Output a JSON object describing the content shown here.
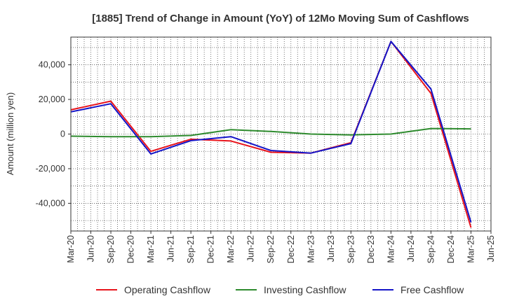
{
  "chart_data": {
    "type": "line",
    "title": "[1885]  Trend of Change in Amount (YoY) of 12Mo Moving Sum of Cashflows",
    "xlabel": "",
    "ylabel": "Amount (million yen)",
    "ylim": [
      -56000,
      56000
    ],
    "yticks": [
      -40000,
      -20000,
      0,
      20000,
      40000
    ],
    "ytick_labels": [
      "-40,000",
      "-20,000",
      "0",
      "20,000",
      "40,000"
    ],
    "categories": [
      "Mar-20",
      "Jun-20",
      "Sep-20",
      "Dec-20",
      "Mar-21",
      "Jun-21",
      "Sep-21",
      "Dec-21",
      "Mar-22",
      "Jun-22",
      "Sep-22",
      "Dec-22",
      "Mar-23",
      "Jun-23",
      "Sep-23",
      "Dec-23",
      "Mar-24",
      "Jun-24",
      "Sep-24",
      "Dec-24",
      "Mar-25",
      "Jun-25"
    ],
    "grid": true,
    "legend_position": "bottom",
    "series": [
      {
        "name": "Operating Cashflow",
        "color": "#e8141c",
        "points": [
          {
            "x": "Mar-20",
            "y": 14000
          },
          {
            "x": "Sep-20",
            "y": 19000
          },
          {
            "x": "Mar-21",
            "y": -10000
          },
          {
            "x": "Sep-21",
            "y": -3000
          },
          {
            "x": "Mar-22",
            "y": -4000
          },
          {
            "x": "Sep-22",
            "y": -10500
          },
          {
            "x": "Mar-23",
            "y": -11000
          },
          {
            "x": "Sep-23",
            "y": -5000
          },
          {
            "x": "Mar-24",
            "y": 53500
          },
          {
            "x": "Sep-24",
            "y": 23500
          },
          {
            "x": "Mar-25",
            "y": -54000
          }
        ]
      },
      {
        "name": "Investing Cashflow",
        "color": "#2e8b2e",
        "points": [
          {
            "x": "Mar-20",
            "y": -1200
          },
          {
            "x": "Sep-20",
            "y": -1500
          },
          {
            "x": "Mar-21",
            "y": -1500
          },
          {
            "x": "Sep-21",
            "y": -800
          },
          {
            "x": "Mar-22",
            "y": 2500
          },
          {
            "x": "Sep-22",
            "y": 1500
          },
          {
            "x": "Mar-23",
            "y": 0
          },
          {
            "x": "Sep-23",
            "y": -500
          },
          {
            "x": "Mar-24",
            "y": 0
          },
          {
            "x": "Sep-24",
            "y": 3200
          },
          {
            "x": "Mar-25",
            "y": 3000
          }
        ]
      },
      {
        "name": "Free Cashflow",
        "color": "#1414c8",
        "points": [
          {
            "x": "Mar-20",
            "y": 12800
          },
          {
            "x": "Sep-20",
            "y": 17500
          },
          {
            "x": "Mar-21",
            "y": -11500
          },
          {
            "x": "Sep-21",
            "y": -3800
          },
          {
            "x": "Mar-22",
            "y": -1500
          },
          {
            "x": "Sep-22",
            "y": -9500
          },
          {
            "x": "Mar-23",
            "y": -11000
          },
          {
            "x": "Sep-23",
            "y": -5500
          },
          {
            "x": "Mar-24",
            "y": 53500
          },
          {
            "x": "Sep-24",
            "y": 26000
          },
          {
            "x": "Mar-25",
            "y": -51000
          }
        ]
      }
    ]
  }
}
